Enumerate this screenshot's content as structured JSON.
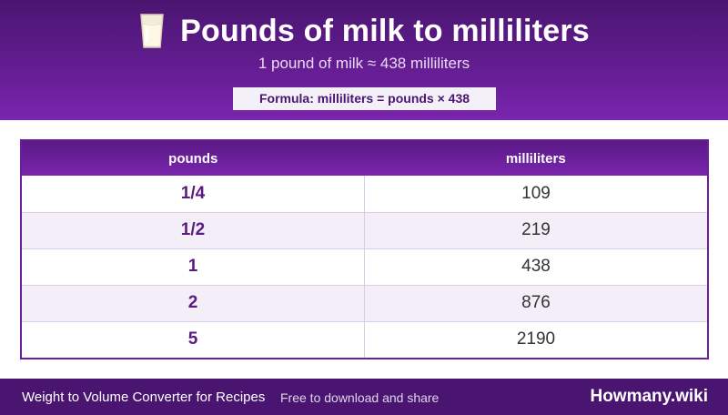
{
  "header": {
    "icon": "milk-glass-icon",
    "title": "Pounds of milk to milliliters",
    "subtitle": "1 pound of milk ≈ 438 milliliters",
    "formula": "Formula: milliliters = pounds × 438"
  },
  "table": {
    "columns": [
      "pounds",
      "milliliters"
    ],
    "rows": [
      {
        "pounds": "1/4",
        "milliliters": "109"
      },
      {
        "pounds": "1/2",
        "milliliters": "219"
      },
      {
        "pounds": "1",
        "milliliters": "438"
      },
      {
        "pounds": "2",
        "milliliters": "876"
      },
      {
        "pounds": "5",
        "milliliters": "2190"
      }
    ]
  },
  "footer": {
    "left_text": "Weight to Volume Converter for Recipes",
    "mid_text": "Free to download and share",
    "brand": "Howmany.wiki"
  },
  "colors": {
    "primary": "#6a1f9a",
    "dark": "#4a1570"
  }
}
